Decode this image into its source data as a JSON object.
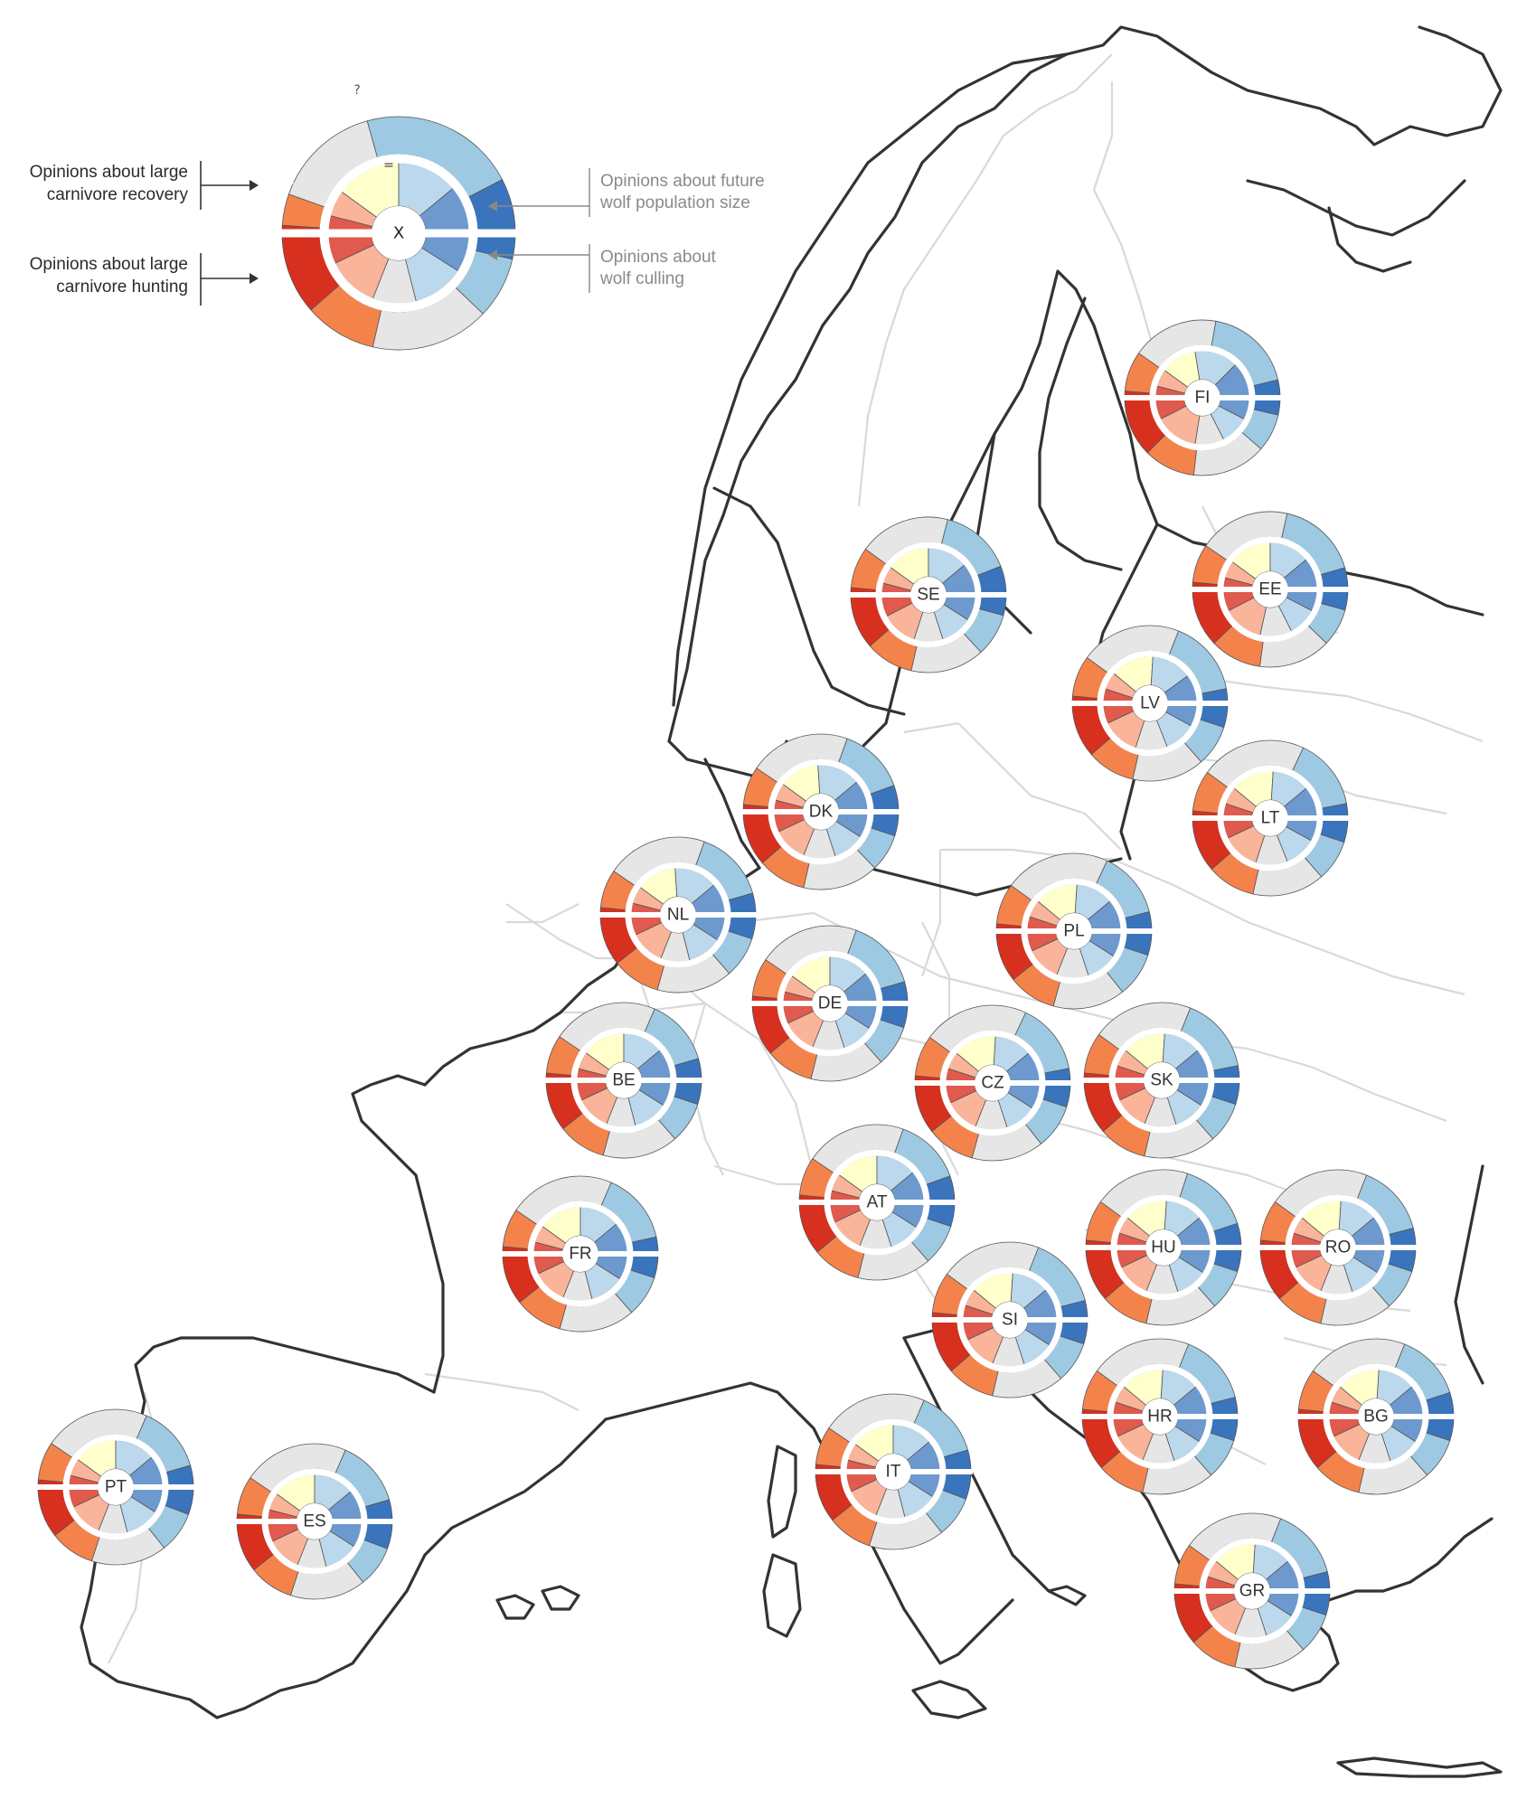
{
  "colors": {
    "strongly_negative": "#d7301f",
    "negative": "#f4834b",
    "neutral_equal": "#ffffcc",
    "unknown": "#e6e6e6",
    "positive": "#9ec9e2",
    "strongly_positive": "#3a74bd",
    "inner_neg_strong": "#e05a4e",
    "inner_neg": "#f9b49a",
    "inner_pos": "#bcd8ec",
    "inner_pos_strong": "#6d99cf",
    "coastline": "#333333",
    "borders": "#d9d9d9"
  },
  "legend": {
    "notes": {
      "recovery": [
        "Opinions about large",
        "carnivore recovery"
      ],
      "hunting": [
        "Opinions about large",
        "carnivore hunting"
      ],
      "population": [
        "Opinions about future",
        "wolf population size"
      ],
      "culling": [
        "Opinions about",
        "wolf culling"
      ]
    },
    "symbols": {
      "unknown": "?",
      "positive": "+",
      "strongly_positive": "++",
      "negative": "−",
      "strongly_negative": "——",
      "equal": "=",
      "center": "X"
    }
  },
  "countries": [
    {
      "code": "FI",
      "recovery": [
        3,
        18,
        5,
        34,
        40,
        8
      ],
      "hunting": [
        10,
        22,
        3,
        30,
        35
      ],
      "population": [
        8,
        12,
        25,
        30,
        25
      ],
      "culling": [
        15,
        20,
        20,
        30,
        15
      ]
    },
    {
      "code": "SE",
      "recovery": [
        3,
        17,
        22,
        16,
        30,
        12
      ],
      "hunting": [
        12,
        25,
        3,
        28,
        32
      ],
      "population": [
        8,
        12,
        30,
        28,
        22
      ],
      "culling": [
        18,
        22,
        20,
        25,
        15
      ]
    },
    {
      "code": "EE",
      "recovery": [
        3,
        16,
        20,
        18,
        34,
        9
      ],
      "hunting": [
        12,
        22,
        2,
        30,
        34
      ],
      "population": [
        8,
        12,
        30,
        28,
        22
      ],
      "culling": [
        15,
        20,
        22,
        28,
        15
      ]
    },
    {
      "code": "LV",
      "recovery": [
        3,
        17,
        24,
        18,
        32,
        6
      ],
      "hunting": [
        14,
        24,
        2,
        28,
        32
      ],
      "population": [
        10,
        12,
        30,
        28,
        20
      ],
      "culling": [
        16,
        22,
        22,
        26,
        14
      ]
    },
    {
      "code": "LT",
      "recovery": [
        3,
        17,
        24,
        20,
        30,
        6
      ],
      "hunting": [
        14,
        24,
        2,
        28,
        32
      ],
      "population": [
        10,
        12,
        30,
        26,
        22
      ],
      "culling": [
        16,
        22,
        22,
        26,
        14
      ]
    },
    {
      "code": "DK",
      "recovery": [
        3,
        16,
        20,
        22,
        28,
        11
      ],
      "hunting": [
        14,
        22,
        4,
        28,
        32
      ],
      "population": [
        8,
        12,
        28,
        30,
        22
      ],
      "culling": [
        18,
        22,
        22,
        24,
        14
      ]
    },
    {
      "code": "NL",
      "recovery": [
        3,
        16,
        20,
        22,
        30,
        9
      ],
      "hunting": [
        14,
        24,
        4,
        28,
        30
      ],
      "population": [
        8,
        12,
        28,
        30,
        22
      ],
      "culling": [
        18,
        24,
        20,
        24,
        14
      ]
    },
    {
      "code": "PL",
      "recovery": [
        3,
        17,
        24,
        20,
        28,
        8
      ],
      "hunting": [
        14,
        26,
        2,
        28,
        30
      ],
      "population": [
        10,
        12,
        30,
        26,
        22
      ],
      "culling": [
        18,
        22,
        22,
        24,
        14
      ]
    },
    {
      "code": "DE",
      "recovery": [
        3,
        16,
        22,
        20,
        30,
        9
      ],
      "hunting": [
        14,
        24,
        3,
        28,
        31
      ],
      "population": [
        8,
        12,
        30,
        28,
        22
      ],
      "culling": [
        18,
        22,
        22,
        24,
        14
      ]
    },
    {
      "code": "BE",
      "recovery": [
        3,
        16,
        24,
        20,
        28,
        9
      ],
      "hunting": [
        14,
        24,
        4,
        28,
        30
      ],
      "population": [
        8,
        12,
        30,
        28,
        22
      ],
      "culling": [
        18,
        24,
        20,
        24,
        14
      ]
    },
    {
      "code": "CZ",
      "recovery": [
        3,
        17,
        24,
        20,
        30,
        6
      ],
      "hunting": [
        14,
        26,
        2,
        28,
        30
      ],
      "population": [
        10,
        12,
        30,
        26,
        22
      ],
      "culling": [
        18,
        22,
        22,
        24,
        14
      ]
    },
    {
      "code": "SK",
      "recovery": [
        3,
        17,
        22,
        20,
        32,
        6
      ],
      "hunting": [
        14,
        24,
        2,
        28,
        32
      ],
      "population": [
        10,
        12,
        30,
        26,
        22
      ],
      "culling": [
        18,
        22,
        22,
        24,
        14
      ]
    },
    {
      "code": "AT",
      "recovery": [
        3,
        16,
        22,
        20,
        28,
        11
      ],
      "hunting": [
        14,
        24,
        3,
        28,
        31
      ],
      "population": [
        8,
        12,
        30,
        28,
        22
      ],
      "culling": [
        18,
        22,
        22,
        24,
        14
      ]
    },
    {
      "code": "FR",
      "recovery": [
        3,
        16,
        24,
        20,
        30,
        7
      ],
      "hunting": [
        14,
        24,
        4,
        28,
        30
      ],
      "population": [
        8,
        12,
        30,
        28,
        22
      ],
      "culling": [
        18,
        24,
        20,
        24,
        14
      ]
    },
    {
      "code": "HU",
      "recovery": [
        3,
        17,
        22,
        18,
        30,
        10
      ],
      "hunting": [
        14,
        24,
        2,
        28,
        32
      ],
      "population": [
        10,
        12,
        30,
        26,
        22
      ],
      "culling": [
        18,
        22,
        22,
        24,
        14
      ]
    },
    {
      "code": "RO",
      "recovery": [
        3,
        17,
        24,
        18,
        30,
        8
      ],
      "hunting": [
        14,
        24,
        2,
        28,
        32
      ],
      "population": [
        10,
        12,
        30,
        26,
        22
      ],
      "culling": [
        18,
        22,
        22,
        24,
        14
      ]
    },
    {
      "code": "SI",
      "recovery": [
        3,
        17,
        22,
        20,
        30,
        8
      ],
      "hunting": [
        14,
        24,
        2,
        28,
        32
      ],
      "population": [
        10,
        12,
        30,
        26,
        22
      ],
      "culling": [
        18,
        22,
        22,
        24,
        14
      ]
    },
    {
      "code": "HR",
      "recovery": [
        3,
        17,
        24,
        18,
        30,
        8
      ],
      "hunting": [
        14,
        24,
        2,
        28,
        32
      ],
      "population": [
        10,
        12,
        30,
        26,
        22
      ],
      "culling": [
        18,
        22,
        22,
        24,
        14
      ]
    },
    {
      "code": "BG",
      "recovery": [
        3,
        17,
        24,
        18,
        28,
        10
      ],
      "hunting": [
        14,
        24,
        2,
        28,
        32
      ],
      "population": [
        10,
        12,
        30,
        26,
        22
      ],
      "culling": [
        18,
        22,
        22,
        24,
        14
      ]
    },
    {
      "code": "PT",
      "recovery": [
        3,
        16,
        22,
        22,
        28,
        9
      ],
      "hunting": [
        16,
        24,
        4,
        26,
        30
      ],
      "population": [
        8,
        12,
        30,
        28,
        22
      ],
      "culling": [
        18,
        24,
        20,
        24,
        14
      ]
    },
    {
      "code": "ES",
      "recovery": [
        3,
        16,
        22,
        22,
        28,
        9
      ],
      "hunting": [
        16,
        24,
        4,
        26,
        30
      ],
      "population": [
        8,
        12,
        30,
        28,
        22
      ],
      "culling": [
        18,
        24,
        20,
        24,
        14
      ]
    },
    {
      "code": "IT",
      "recovery": [
        3,
        16,
        22,
        22,
        28,
        9
      ],
      "hunting": [
        16,
        24,
        4,
        26,
        30
      ],
      "population": [
        8,
        12,
        30,
        28,
        22
      ],
      "culling": [
        18,
        24,
        20,
        24,
        14
      ]
    },
    {
      "code": "GR",
      "recovery": [
        3,
        17,
        24,
        18,
        30,
        8
      ],
      "hunting": [
        14,
        24,
        2,
        28,
        32
      ],
      "population": [
        10,
        12,
        30,
        26,
        22
      ],
      "culling": [
        18,
        22,
        22,
        24,
        14
      ]
    }
  ]
}
